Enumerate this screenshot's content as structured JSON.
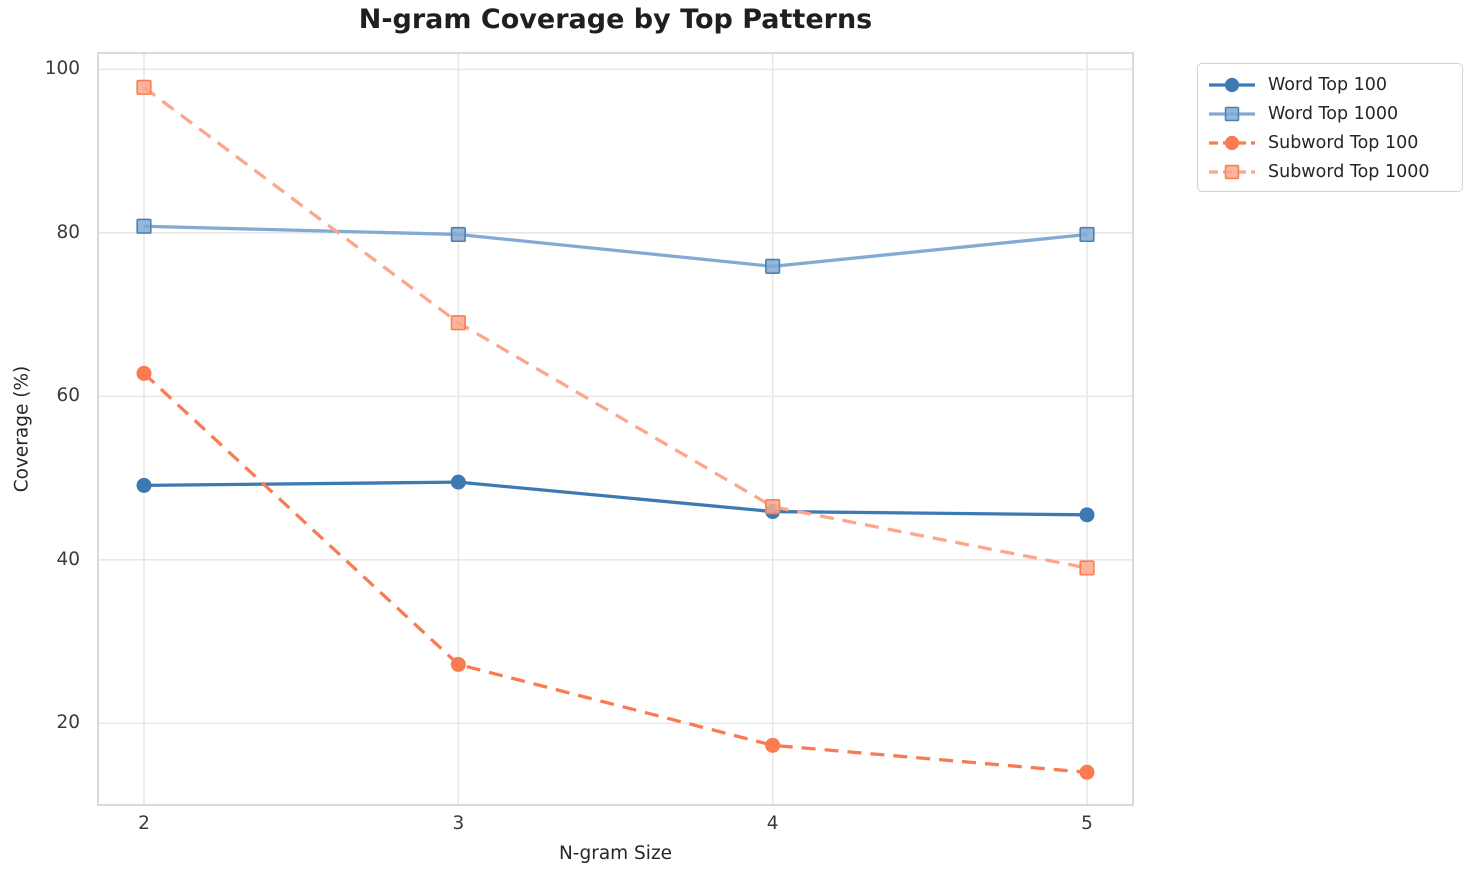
{
  "chart_data": {
    "type": "line",
    "title": "N-gram Coverage by Top Patterns",
    "xlabel": "N-gram Size",
    "ylabel": "Coverage (%)",
    "categories": [
      2,
      3,
      4,
      5
    ],
    "y_ticks": [
      20,
      40,
      60,
      80,
      100
    ],
    "ylim": [
      10,
      102
    ],
    "grid": true,
    "grid_color": "#e8e8e8",
    "spine_color": "#d6d6d6",
    "background": "#ffffff",
    "legend_position": "outside-upper-right",
    "series": [
      {
        "name": "Word Top 100",
        "values": [
          49.1,
          49.5,
          45.9,
          45.5
        ],
        "color": "#3d7ab4",
        "marker_edge": "#3d7ab4",
        "line_style": "solid",
        "marker": "circle"
      },
      {
        "name": "Word Top 1000",
        "values": [
          80.8,
          79.8,
          75.9,
          79.8
        ],
        "color": "#83aad2",
        "marker_edge": "#4a82b4",
        "line_style": "solid",
        "marker": "square"
      },
      {
        "name": "Subword Top 100",
        "values": [
          62.8,
          27.2,
          17.3,
          14.0
        ],
        "color": "#fb7b50",
        "marker_edge": "#fb7b50",
        "line_style": "dashed",
        "marker": "circle"
      },
      {
        "name": "Subword Top 1000",
        "values": [
          97.8,
          69.0,
          46.5,
          39.0
        ],
        "color": "#fca78c",
        "marker_edge": "#fb7d52",
        "line_style": "dashed",
        "marker": "square"
      }
    ]
  }
}
